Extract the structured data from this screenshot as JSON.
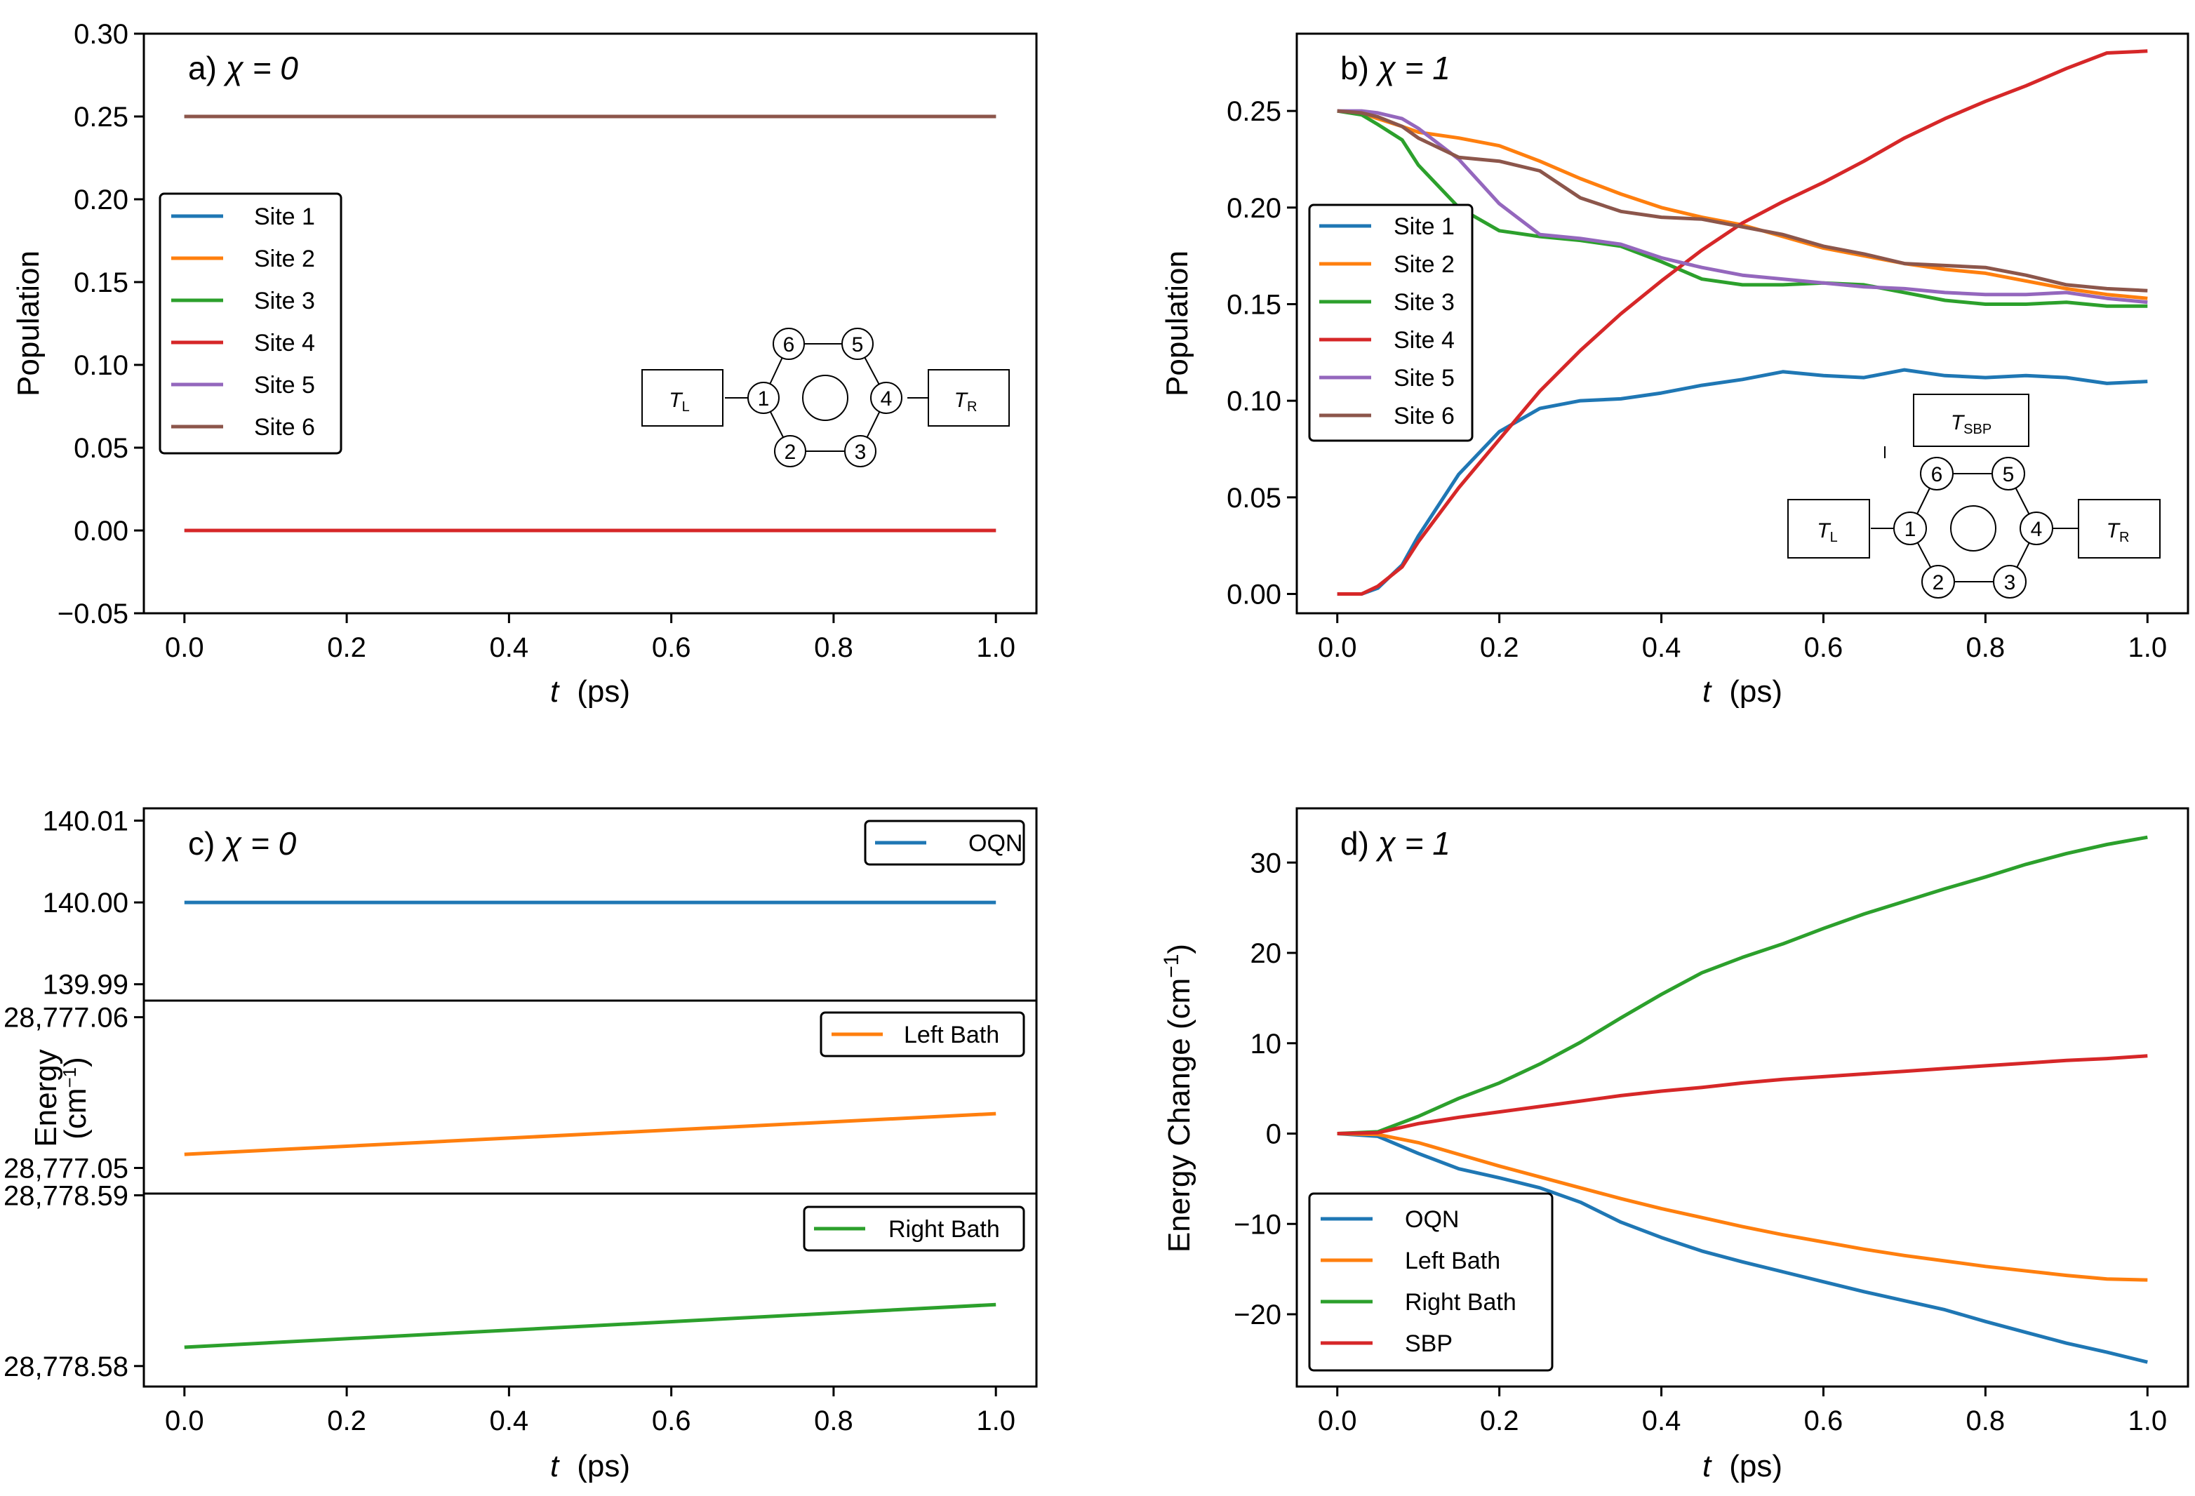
{
  "panels": {
    "a": {
      "label": "a) ",
      "chi": "χ = 0"
    },
    "b": {
      "label": "b) ",
      "chi": "χ = 1"
    },
    "c": {
      "label": "c) ",
      "chi": "χ = 0"
    },
    "d": {
      "label": "d) ",
      "chi": "χ = 1"
    }
  },
  "molecule": {
    "sites": [
      "1",
      "2",
      "3",
      "4",
      "5",
      "6"
    ],
    "left_reservoir": "T",
    "left_sub": "L",
    "right_reservoir": "T",
    "right_sub": "R",
    "sbp_reservoir": "T",
    "sbp_sub": "SBP"
  },
  "colors": {
    "blue": "#1f77b4",
    "orange": "#ff7f0e",
    "green": "#2ca02c",
    "red": "#d62728",
    "purple": "#9467bd",
    "brown": "#8c564b"
  },
  "chart_data": [
    {
      "id": "a",
      "type": "line",
      "title": "a) χ = 0",
      "xlabel_t": "t",
      "xlabel_unit": "(ps)",
      "ylabel": "Population",
      "xlim": [
        -0.05,
        1.05
      ],
      "ylim": [
        -0.05,
        0.3
      ],
      "xticks": [
        0.0,
        0.2,
        0.4,
        0.6,
        0.8,
        1.0
      ],
      "xtick_labels": [
        "0.0",
        "0.2",
        "0.4",
        "0.6",
        "0.8",
        "1.0"
      ],
      "yticks": [
        -0.05,
        0.0,
        0.05,
        0.1,
        0.15,
        0.2,
        0.25,
        0.3
      ],
      "ytick_labels": [
        "−0.05",
        "0.00",
        "0.05",
        "0.10",
        "0.15",
        "0.20",
        "0.25",
        "0.30"
      ],
      "legend": [
        "Site 1",
        "Site 2",
        "Site 3",
        "Site 4",
        "Site 5",
        "Site 6"
      ],
      "x": [
        0.0,
        1.0
      ],
      "series": [
        {
          "name": "Site 1",
          "color": "#1f77b4",
          "values": [
            0.0,
            0.0
          ]
        },
        {
          "name": "Site 2",
          "color": "#ff7f0e",
          "values": [
            0.25,
            0.25
          ]
        },
        {
          "name": "Site 3",
          "color": "#2ca02c",
          "values": [
            0.25,
            0.25
          ]
        },
        {
          "name": "Site 4",
          "color": "#d62728",
          "values": [
            0.0,
            0.0
          ]
        },
        {
          "name": "Site 5",
          "color": "#9467bd",
          "values": [
            0.25,
            0.25
          ]
        },
        {
          "name": "Site 6",
          "color": "#8c564b",
          "values": [
            0.25,
            0.25
          ]
        }
      ]
    },
    {
      "id": "b",
      "type": "line",
      "title": "b) χ = 1",
      "xlabel_t": "t",
      "xlabel_unit": "(ps)",
      "ylabel": "Population",
      "xlim": [
        -0.05,
        1.05
      ],
      "ylim": [
        -0.01,
        0.29
      ],
      "xticks": [
        0.0,
        0.2,
        0.4,
        0.6,
        0.8,
        1.0
      ],
      "xtick_labels": [
        "0.0",
        "0.2",
        "0.4",
        "0.6",
        "0.8",
        "1.0"
      ],
      "yticks": [
        0.0,
        0.05,
        0.1,
        0.15,
        0.2,
        0.25
      ],
      "ytick_labels": [
        "0.00",
        "0.05",
        "0.10",
        "0.15",
        "0.20",
        "0.25"
      ],
      "legend": [
        "Site 1",
        "Site 2",
        "Site 3",
        "Site 4",
        "Site 5",
        "Site 6"
      ],
      "x": [
        0.0,
        0.03,
        0.05,
        0.08,
        0.1,
        0.15,
        0.2,
        0.25,
        0.3,
        0.35,
        0.4,
        0.45,
        0.5,
        0.55,
        0.6,
        0.65,
        0.7,
        0.75,
        0.8,
        0.85,
        0.9,
        0.95,
        1.0
      ],
      "series": [
        {
          "name": "Site 1",
          "color": "#1f77b4",
          "values": [
            0.0,
            0.0,
            0.003,
            0.015,
            0.03,
            0.062,
            0.084,
            0.096,
            0.1,
            0.101,
            0.104,
            0.108,
            0.111,
            0.115,
            0.113,
            0.112,
            0.116,
            0.113,
            0.112,
            0.113,
            0.112,
            0.109,
            0.11
          ]
        },
        {
          "name": "Site 2",
          "color": "#ff7f0e",
          "values": [
            0.25,
            0.249,
            0.246,
            0.242,
            0.239,
            0.236,
            0.232,
            0.224,
            0.215,
            0.207,
            0.2,
            0.195,
            0.191,
            0.185,
            0.179,
            0.175,
            0.171,
            0.168,
            0.166,
            0.162,
            0.158,
            0.155,
            0.153
          ]
        },
        {
          "name": "Site 3",
          "color": "#2ca02c",
          "values": [
            0.25,
            0.248,
            0.243,
            0.235,
            0.222,
            0.2,
            0.188,
            0.185,
            0.183,
            0.18,
            0.172,
            0.163,
            0.16,
            0.16,
            0.161,
            0.16,
            0.156,
            0.152,
            0.15,
            0.15,
            0.151,
            0.149,
            0.149
          ]
        },
        {
          "name": "Site 4",
          "color": "#d62728",
          "values": [
            0.0,
            0.0,
            0.004,
            0.014,
            0.027,
            0.055,
            0.08,
            0.105,
            0.126,
            0.145,
            0.162,
            0.178,
            0.192,
            0.203,
            0.213,
            0.224,
            0.236,
            0.246,
            0.255,
            0.263,
            0.272,
            0.28,
            0.281
          ]
        },
        {
          "name": "Site 5",
          "color": "#9467bd",
          "values": [
            0.25,
            0.25,
            0.249,
            0.246,
            0.241,
            0.225,
            0.202,
            0.186,
            0.184,
            0.181,
            0.174,
            0.169,
            0.165,
            0.163,
            0.161,
            0.159,
            0.158,
            0.156,
            0.155,
            0.155,
            0.156,
            0.153,
            0.151
          ]
        },
        {
          "name": "Site 6",
          "color": "#8c564b",
          "values": [
            0.25,
            0.249,
            0.247,
            0.242,
            0.236,
            0.226,
            0.224,
            0.219,
            0.205,
            0.198,
            0.195,
            0.194,
            0.19,
            0.186,
            0.18,
            0.176,
            0.171,
            0.17,
            0.169,
            0.165,
            0.16,
            0.158,
            0.157
          ]
        }
      ]
    },
    {
      "id": "c",
      "type": "line",
      "title": "c) χ = 0",
      "xlabel_t": "t",
      "xlabel_unit": "(ps)",
      "ylabel_line1": "Energy",
      "ylabel_line2": "(cm",
      "ylabel_sup": "−1",
      "ylabel_close": ")",
      "xlim": [
        -0.05,
        1.05
      ],
      "xticks": [
        0.0,
        0.2,
        0.4,
        0.6,
        0.8,
        1.0
      ],
      "xtick_labels": [
        "0.0",
        "0.2",
        "0.4",
        "0.6",
        "0.8",
        "1.0"
      ],
      "subplots": [
        {
          "name": "OQN",
          "color": "#1f77b4",
          "ylim": [
            139.988,
            140.0115
          ],
          "yticks": [
            139.99,
            140.0,
            140.01
          ],
          "ytick_labels": [
            "139.99",
            "140.00",
            "140.01"
          ],
          "x": [
            0.0,
            1.0
          ],
          "values": [
            140.0,
            140.0
          ]
        },
        {
          "name": "Left Bath",
          "color": "#ff7f0e",
          "ylim": [
            28777.0483,
            28777.0611
          ],
          "yticks": [
            28777.05,
            28777.06
          ],
          "ytick_labels": [
            "28,777.05",
            "28,777.06"
          ],
          "x": [
            0.0,
            1.0
          ],
          "values": [
            28777.0509,
            28777.0536
          ]
        },
        {
          "name": "Right Bath",
          "color": "#2ca02c",
          "ylim": [
            28778.5788,
            28778.5901
          ],
          "yticks": [
            28778.58,
            28778.59
          ],
          "ytick_labels": [
            "28,778.58",
            "28,778.59"
          ],
          "x": [
            0.0,
            1.0
          ],
          "values": [
            28778.5811,
            28778.5836
          ]
        }
      ]
    },
    {
      "id": "d",
      "type": "line",
      "title": "d) χ = 1",
      "xlabel_t": "t",
      "xlabel_unit": "(ps)",
      "ylabel": "Energy Change (cm",
      "ylabel_sup": "−1",
      "ylabel_close": ")",
      "xlim": [
        -0.05,
        1.05
      ],
      "ylim": [
        -28,
        36
      ],
      "xticks": [
        0.0,
        0.2,
        0.4,
        0.6,
        0.8,
        1.0
      ],
      "xtick_labels": [
        "0.0",
        "0.2",
        "0.4",
        "0.6",
        "0.8",
        "1.0"
      ],
      "yticks": [
        -20,
        -10,
        0,
        10,
        20,
        30
      ],
      "ytick_labels": [
        "−20",
        "−10",
        "0",
        "10",
        "20",
        "30"
      ],
      "legend": [
        "OQN",
        "Left Bath",
        "Right Bath",
        "SBP"
      ],
      "x": [
        0.0,
        0.05,
        0.1,
        0.15,
        0.2,
        0.25,
        0.3,
        0.35,
        0.4,
        0.45,
        0.5,
        0.55,
        0.6,
        0.65,
        0.7,
        0.75,
        0.8,
        0.85,
        0.9,
        0.95,
        1.0
      ],
      "series": [
        {
          "name": "OQN",
          "color": "#1f77b4",
          "values": [
            0.0,
            -0.3,
            -2.2,
            -3.9,
            -4.9,
            -6.0,
            -7.6,
            -9.8,
            -11.5,
            -13.0,
            -14.2,
            -15.3,
            -16.4,
            -17.5,
            -18.5,
            -19.5,
            -20.8,
            -22.0,
            -23.2,
            -24.2,
            -25.3
          ]
        },
        {
          "name": "Left Bath",
          "color": "#ff7f0e",
          "values": [
            0.0,
            -0.1,
            -1.0,
            -2.3,
            -3.6,
            -4.8,
            -6.0,
            -7.2,
            -8.3,
            -9.3,
            -10.3,
            -11.2,
            -12.0,
            -12.8,
            -13.5,
            -14.1,
            -14.7,
            -15.2,
            -15.7,
            -16.1,
            -16.2
          ]
        },
        {
          "name": "Right Bath",
          "color": "#2ca02c",
          "values": [
            0.0,
            0.2,
            1.9,
            3.9,
            5.6,
            7.7,
            10.1,
            12.8,
            15.4,
            17.8,
            19.5,
            21.0,
            22.7,
            24.3,
            25.7,
            27.1,
            28.4,
            29.8,
            31.0,
            32.0,
            32.8
          ]
        },
        {
          "name": "SBP",
          "color": "#d62728",
          "values": [
            0.0,
            0.1,
            1.1,
            1.8,
            2.4,
            3.0,
            3.6,
            4.2,
            4.7,
            5.1,
            5.6,
            6.0,
            6.3,
            6.6,
            6.9,
            7.2,
            7.5,
            7.8,
            8.1,
            8.3,
            8.6
          ]
        }
      ]
    }
  ]
}
